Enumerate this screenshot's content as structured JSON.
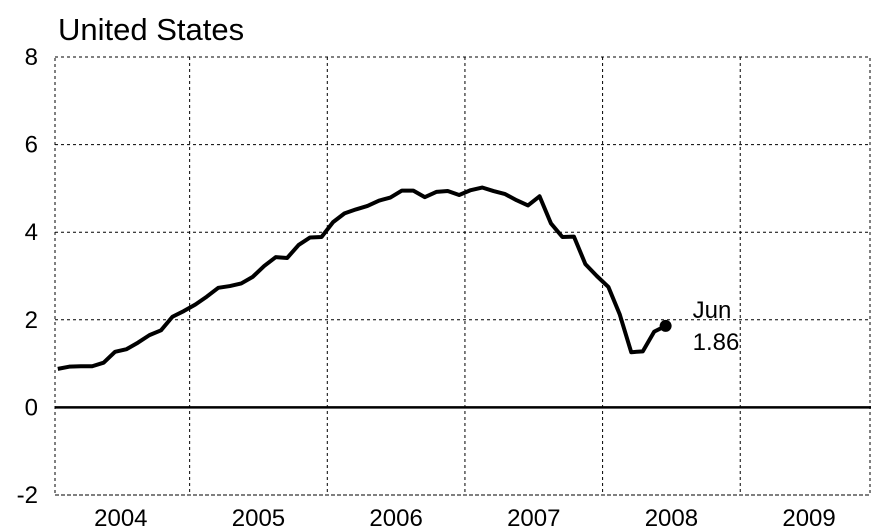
{
  "chart_data": {
    "type": "line",
    "title": "United States",
    "x": [
      2004.042,
      2004.125,
      2004.208,
      2004.292,
      2004.375,
      2004.458,
      2004.542,
      2004.625,
      2004.708,
      2004.792,
      2004.875,
      2004.958,
      2005.042,
      2005.125,
      2005.208,
      2005.292,
      2005.375,
      2005.458,
      2005.542,
      2005.625,
      2005.708,
      2005.792,
      2005.875,
      2005.958,
      2006.042,
      2006.125,
      2006.208,
      2006.292,
      2006.375,
      2006.458,
      2006.542,
      2006.625,
      2006.708,
      2006.792,
      2006.875,
      2006.958,
      2007.042,
      2007.125,
      2007.208,
      2007.292,
      2007.375,
      2007.458,
      2007.542,
      2007.625,
      2007.708,
      2007.792,
      2007.875,
      2007.958,
      2008.042,
      2008.125,
      2008.208,
      2008.292,
      2008.375,
      2008.458
    ],
    "values": [
      0.88,
      0.93,
      0.94,
      0.94,
      1.02,
      1.27,
      1.33,
      1.48,
      1.65,
      1.76,
      2.07,
      2.2,
      2.35,
      2.53,
      2.73,
      2.77,
      2.83,
      2.98,
      3.23,
      3.43,
      3.41,
      3.71,
      3.88,
      3.89,
      4.23,
      4.43,
      4.52,
      4.6,
      4.72,
      4.79,
      4.95,
      4.95,
      4.8,
      4.92,
      4.94,
      4.85,
      4.96,
      5.02,
      4.94,
      4.87,
      4.73,
      4.61,
      4.82,
      4.2,
      3.89,
      3.9,
      3.27,
      3.0,
      2.75,
      2.12,
      1.26,
      1.28,
      1.73,
      1.86
    ],
    "color": "#000000",
    "annotation": "Jun",
    "xlim": [
      2004,
      2009.95
    ],
    "xticks": [
      2005,
      2006,
      2007,
      2008,
      2009
    ],
    "xtick_labels": [
      {
        "value": 2004.5,
        "label": "2004"
      },
      {
        "value": 2005.5,
        "label": "2005"
      },
      {
        "value": 2006.5,
        "label": "2006"
      },
      {
        "value": 2007.5,
        "label": "2007"
      },
      {
        "value": 2008.5,
        "label": "2008"
      },
      {
        "value": 2009.5,
        "label": "2009"
      }
    ],
    "ylim": [
      -2,
      8
    ],
    "yticks": [
      -2,
      0,
      2,
      4,
      6,
      8
    ],
    "grid": true
  }
}
